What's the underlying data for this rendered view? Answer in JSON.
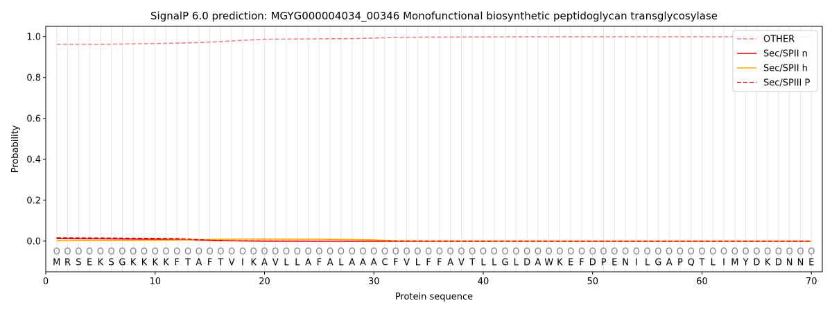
{
  "chart_data": {
    "type": "line",
    "title": "SignalP 6.0 prediction: MGYG000004034_00346 Monofunctional biosynthetic peptidoglycan transglycosylase",
    "xlabel": "Protein sequence",
    "ylabel": "Probability",
    "xlim": [
      0,
      71
    ],
    "ylim": [
      -0.15,
      1.05
    ],
    "xticks": [
      0,
      10,
      20,
      30,
      40,
      50,
      60,
      70
    ],
    "yticks": [
      0.0,
      0.2,
      0.4,
      0.6,
      0.8,
      1.0
    ],
    "xtick_labels": [
      "0",
      "10",
      "20",
      "30",
      "40",
      "50",
      "60",
      "70"
    ],
    "ytick_labels": [
      "0.0",
      "0.2",
      "0.4",
      "0.6",
      "0.8",
      "1.0"
    ],
    "legend_position": "top-right",
    "sequence": [
      "M",
      "R",
      "S",
      "E",
      "K",
      "S",
      "G",
      "K",
      "K",
      "K",
      "K",
      "F",
      "T",
      "A",
      "F",
      "T",
      "V",
      "I",
      "K",
      "A",
      "V",
      "L",
      "L",
      "A",
      "F",
      "A",
      "L",
      "A",
      "A",
      "A",
      "C",
      "F",
      "V",
      "L",
      "F",
      "F",
      "A",
      "V",
      "T",
      "L",
      "L",
      "G",
      "L",
      "D",
      "A",
      "W",
      "K",
      "E",
      "F",
      "D",
      "P",
      "E",
      "N",
      "I",
      "L",
      "G",
      "A",
      "P",
      "Q",
      "T",
      "L",
      "I",
      "M",
      "Y",
      "D",
      "K",
      "D",
      "N",
      "N",
      "E"
    ],
    "region_marker": "O",
    "series": [
      {
        "name": "OTHER",
        "color": "#f08080",
        "dash": "dashed",
        "x": [
          1,
          5,
          10,
          12,
          14,
          16,
          18,
          20,
          22,
          25,
          28,
          31,
          32,
          35,
          40,
          50,
          60,
          70
        ],
        "values": [
          0.962,
          0.962,
          0.966,
          0.968,
          0.971,
          0.975,
          0.982,
          0.987,
          0.988,
          0.989,
          0.99,
          0.994,
          0.996,
          0.997,
          0.998,
          0.999,
          0.999,
          0.999
        ]
      },
      {
        "name": "Sec/SPII n",
        "color": "#e00000",
        "dash": "solid",
        "x": [
          1,
          5,
          10,
          12,
          14,
          16,
          18,
          20,
          25,
          30,
          35,
          50,
          70
        ],
        "values": [
          0.012,
          0.011,
          0.009,
          0.008,
          0.005,
          0.002,
          0.001,
          0.0,
          0.0,
          0.0,
          0.0,
          0.0,
          0.0
        ]
      },
      {
        "name": "Sec/SPII h",
        "color": "#ffa500",
        "dash": "solid",
        "x": [
          1,
          5,
          10,
          12,
          14,
          16,
          18,
          20,
          25,
          28,
          30,
          32,
          35,
          50,
          70
        ],
        "values": [
          0.002,
          0.003,
          0.004,
          0.005,
          0.007,
          0.009,
          0.01,
          0.01,
          0.009,
          0.008,
          0.006,
          0.002,
          0.001,
          0.0,
          0.0
        ]
      },
      {
        "name": "Sec/SPIII P",
        "color": "#e00000",
        "dash": "dashed",
        "x": [
          1,
          5,
          10,
          12,
          13,
          15,
          17,
          20,
          25,
          30,
          50,
          70
        ],
        "values": [
          0.016,
          0.015,
          0.013,
          0.012,
          0.01,
          0.004,
          0.002,
          0.001,
          0.0,
          0.0,
          0.0,
          0.0
        ]
      }
    ]
  }
}
